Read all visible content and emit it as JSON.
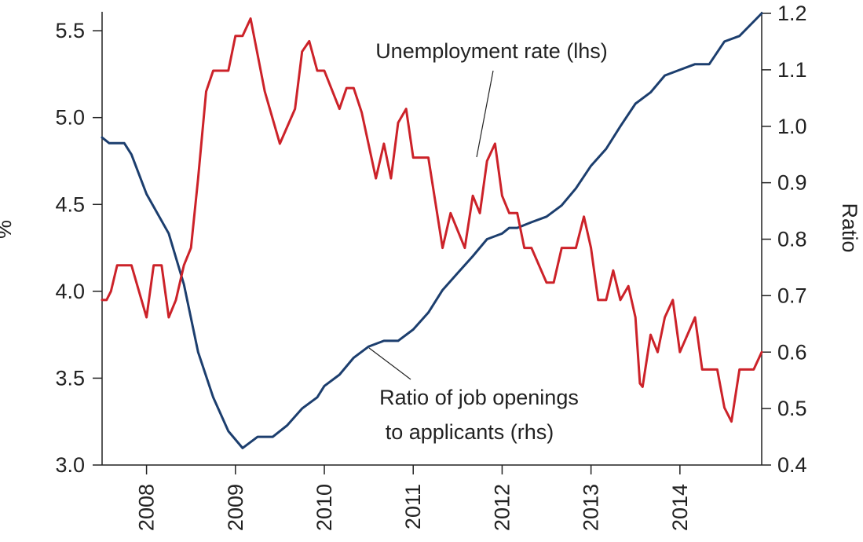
{
  "chart_data": {
    "type": "line",
    "title": "",
    "grid": false,
    "x_range": [
      2007.5,
      2014.92
    ],
    "x_ticks": [
      2008,
      2009,
      2010,
      2011,
      2012,
      2013,
      2014
    ],
    "x_tick_labels": [
      "2008",
      "2009",
      "2010",
      "2011",
      "2012",
      "2013",
      "2014"
    ],
    "y_left": {
      "label": "%",
      "range": [
        3.0,
        5.6
      ],
      "ticks": [
        3.0,
        3.5,
        4.0,
        4.5,
        5.0,
        5.5
      ],
      "tick_labels": [
        "3.0",
        "3.5",
        "4.0",
        "4.5",
        "5.0",
        "5.5"
      ]
    },
    "y_right": {
      "label": "Ratio",
      "range": [
        0.4,
        1.2
      ],
      "ticks": [
        0.4,
        0.5,
        0.6,
        0.7,
        0.8,
        0.9,
        1.0,
        1.1,
        1.2
      ],
      "tick_labels": [
        "0.4",
        "0.5",
        "0.6",
        "0.7",
        "0.8",
        "0.9",
        "1.0",
        "1.1",
        "1.2"
      ]
    },
    "series": [
      {
        "name": "Unemployment rate (lhs)",
        "axis": "left",
        "color": "#cc2229",
        "points": [
          [
            2007.5,
            3.95
          ],
          [
            2007.55,
            3.95
          ],
          [
            2007.6,
            4.0
          ],
          [
            2007.67,
            4.15
          ],
          [
            2007.83,
            4.15
          ],
          [
            2008.0,
            3.85
          ],
          [
            2008.08,
            4.15
          ],
          [
            2008.17,
            4.15
          ],
          [
            2008.25,
            3.85
          ],
          [
            2008.33,
            3.95
          ],
          [
            2008.42,
            4.15
          ],
          [
            2008.5,
            4.25
          ],
          [
            2008.58,
            4.65
          ],
          [
            2008.67,
            5.15
          ],
          [
            2008.75,
            5.27
          ],
          [
            2008.92,
            5.27
          ],
          [
            2009.0,
            5.47
          ],
          [
            2009.08,
            5.47
          ],
          [
            2009.17,
            5.57
          ],
          [
            2009.33,
            5.15
          ],
          [
            2009.5,
            4.85
          ],
          [
            2009.67,
            5.05
          ],
          [
            2009.75,
            5.38
          ],
          [
            2009.83,
            5.44
          ],
          [
            2009.92,
            5.27
          ],
          [
            2010.0,
            5.27
          ],
          [
            2010.17,
            5.05
          ],
          [
            2010.25,
            5.17
          ],
          [
            2010.33,
            5.17
          ],
          [
            2010.42,
            5.03
          ],
          [
            2010.58,
            4.65
          ],
          [
            2010.67,
            4.85
          ],
          [
            2010.75,
            4.65
          ],
          [
            2010.83,
            4.97
          ],
          [
            2010.92,
            5.05
          ],
          [
            2011.0,
            4.77
          ],
          [
            2011.17,
            4.77
          ],
          [
            2011.33,
            4.25
          ],
          [
            2011.42,
            4.45
          ],
          [
            2011.58,
            4.25
          ],
          [
            2011.67,
            4.55
          ],
          [
            2011.75,
            4.45
          ],
          [
            2011.83,
            4.75
          ],
          [
            2011.92,
            4.85
          ],
          [
            2012.0,
            4.55
          ],
          [
            2012.08,
            4.45
          ],
          [
            2012.17,
            4.45
          ],
          [
            2012.25,
            4.25
          ],
          [
            2012.33,
            4.25
          ],
          [
            2012.5,
            4.05
          ],
          [
            2012.58,
            4.05
          ],
          [
            2012.67,
            4.25
          ],
          [
            2012.75,
            4.25
          ],
          [
            2012.83,
            4.25
          ],
          [
            2012.92,
            4.43
          ],
          [
            2013.0,
            4.25
          ],
          [
            2013.08,
            3.95
          ],
          [
            2013.17,
            3.95
          ],
          [
            2013.25,
            4.12
          ],
          [
            2013.33,
            3.95
          ],
          [
            2013.42,
            4.03
          ],
          [
            2013.5,
            3.85
          ],
          [
            2013.55,
            3.47
          ],
          [
            2013.58,
            3.45
          ],
          [
            2013.67,
            3.75
          ],
          [
            2013.75,
            3.65
          ],
          [
            2013.83,
            3.85
          ],
          [
            2013.92,
            3.95
          ],
          [
            2014.0,
            3.65
          ],
          [
            2014.17,
            3.85
          ],
          [
            2014.25,
            3.55
          ],
          [
            2014.42,
            3.55
          ],
          [
            2014.5,
            3.33
          ],
          [
            2014.58,
            3.25
          ],
          [
            2014.67,
            3.55
          ],
          [
            2014.83,
            3.55
          ],
          [
            2014.92,
            3.65
          ]
        ]
      },
      {
        "name": "Ratio of job openings to applicants (rhs)",
        "axis": "right",
        "color": "#1c3e6e",
        "points": [
          [
            2007.5,
            0.98
          ],
          [
            2007.58,
            0.97
          ],
          [
            2007.75,
            0.97
          ],
          [
            2007.83,
            0.95
          ],
          [
            2008.0,
            0.88
          ],
          [
            2008.25,
            0.81
          ],
          [
            2008.42,
            0.72
          ],
          [
            2008.58,
            0.6
          ],
          [
            2008.75,
            0.52
          ],
          [
            2008.92,
            0.46
          ],
          [
            2009.08,
            0.43
          ],
          [
            2009.25,
            0.45
          ],
          [
            2009.42,
            0.45
          ],
          [
            2009.58,
            0.47
          ],
          [
            2009.75,
            0.5
          ],
          [
            2009.92,
            0.52
          ],
          [
            2010.0,
            0.54
          ],
          [
            2010.17,
            0.56
          ],
          [
            2010.33,
            0.59
          ],
          [
            2010.5,
            0.61
          ],
          [
            2010.67,
            0.62
          ],
          [
            2010.83,
            0.62
          ],
          [
            2011.0,
            0.64
          ],
          [
            2011.17,
            0.67
          ],
          [
            2011.33,
            0.71
          ],
          [
            2011.5,
            0.74
          ],
          [
            2011.67,
            0.77
          ],
          [
            2011.83,
            0.8
          ],
          [
            2012.0,
            0.81
          ],
          [
            2012.08,
            0.82
          ],
          [
            2012.17,
            0.82
          ],
          [
            2012.33,
            0.83
          ],
          [
            2012.5,
            0.84
          ],
          [
            2012.67,
            0.86
          ],
          [
            2012.83,
            0.89
          ],
          [
            2013.0,
            0.93
          ],
          [
            2013.17,
            0.96
          ],
          [
            2013.33,
            1.0
          ],
          [
            2013.5,
            1.04
          ],
          [
            2013.67,
            1.06
          ],
          [
            2013.83,
            1.09
          ],
          [
            2014.0,
            1.1
          ],
          [
            2014.17,
            1.11
          ],
          [
            2014.33,
            1.11
          ],
          [
            2014.5,
            1.15
          ],
          [
            2014.67,
            1.16
          ],
          [
            2014.92,
            1.2
          ]
        ]
      }
    ],
    "annotations": [
      {
        "series": 0,
        "lines": [
          "Unemployment rate (lhs)"
        ]
      },
      {
        "series": 1,
        "lines": [
          "Ratio of job openings",
          "to applicants (rhs)"
        ]
      }
    ]
  }
}
